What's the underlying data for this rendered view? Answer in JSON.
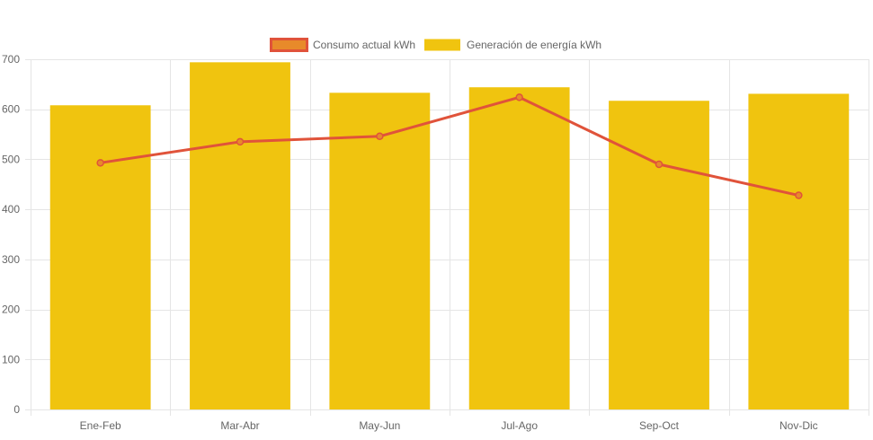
{
  "chart_data": {
    "type": "bar",
    "categories": [
      "Ene-Feb",
      "Mar-Abr",
      "May-Jun",
      "Jul-Ago",
      "Sep-Oct",
      "Nov-Dic"
    ],
    "series": [
      {
        "name": "Consumo actual kWh",
        "type": "line",
        "values": [
          493,
          535,
          546,
          624,
          490,
          428
        ],
        "color": "#e0533a",
        "legend_fill": "#e88a2a"
      },
      {
        "name": "Generación de energía kWh",
        "type": "bar",
        "values": [
          608,
          694,
          633,
          644,
          617,
          631
        ],
        "color": "#f0c40f"
      }
    ],
    "y_ticks": [
      0,
      100,
      200,
      300,
      400,
      500,
      600,
      700
    ],
    "ylim": [
      0,
      700
    ],
    "grid": true,
    "legend_position": "top-center"
  }
}
